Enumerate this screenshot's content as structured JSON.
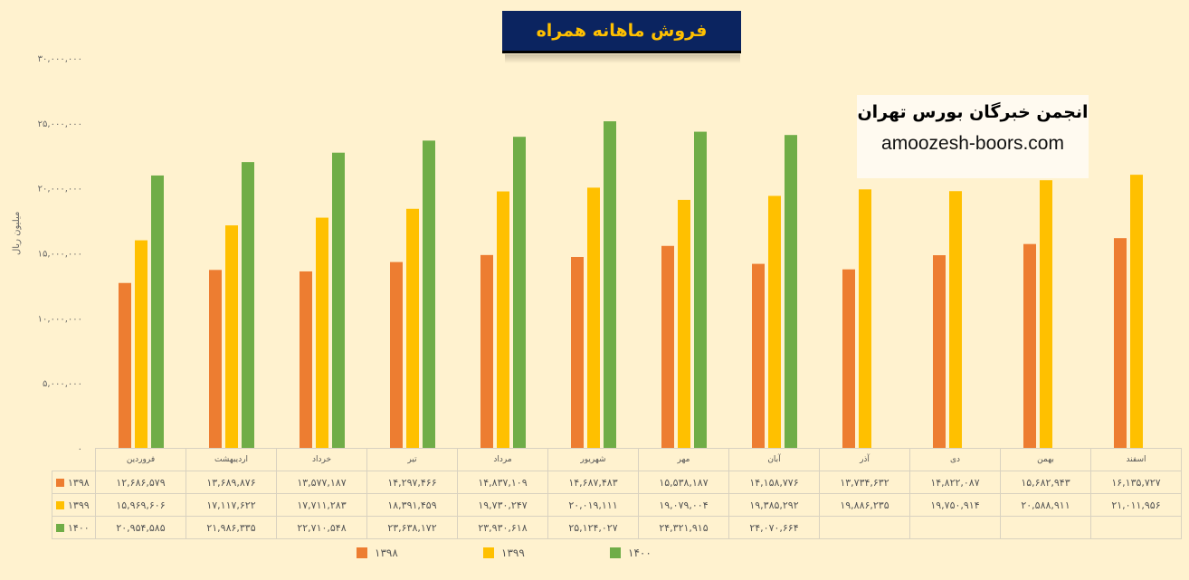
{
  "chart_data": {
    "type": "bar",
    "title": "فروش ماهانه همراه",
    "ylabel": "میلیون ریال",
    "xlabel": "",
    "ylim": [
      0,
      30000000
    ],
    "yticks": [
      0,
      5000000,
      10000000,
      15000000,
      20000000,
      25000000,
      30000000
    ],
    "ytick_labels": [
      "۰",
      "۵,۰۰۰,۰۰۰",
      "۱۰,۰۰۰,۰۰۰",
      "۱۵,۰۰۰,۰۰۰",
      "۲۰,۰۰۰,۰۰۰",
      "۲۵,۰۰۰,۰۰۰",
      "۳۰,۰۰۰,۰۰۰"
    ],
    "categories": [
      "فروردین",
      "اردیبهشت",
      "خرداد",
      "تیر",
      "مرداد",
      "شهریور",
      "مهر",
      "آبان",
      "آذر",
      "دی",
      "بهمن",
      "اسفند"
    ],
    "series": [
      {
        "name": "۱۳۹۸",
        "color": "#ed7d31",
        "values": [
          12686579,
          13689876,
          13577187,
          14297466,
          14837109,
          14687483,
          15538187,
          14158776,
          13734632,
          14822087,
          15682943,
          16135727
        ]
      },
      {
        "name": "۱۳۹۹",
        "color": "#ffc000",
        "values": [
          15969606,
          17117622,
          17711283,
          18391459,
          19730247,
          20019111,
          19079004,
          19385292,
          19886235,
          19750914,
          20588911,
          21011956
        ]
      },
      {
        "name": "۱۴۰۰",
        "color": "#70ad47",
        "values": [
          20954585,
          21986335,
          22710548,
          23638172,
          23930618,
          25124027,
          24321915,
          24070664,
          null,
          null,
          null,
          null
        ]
      }
    ],
    "data_table": true,
    "legend": "bottom",
    "grid": false
  },
  "watermark": {
    "line1": "انجمن خبرگان بورس تهران",
    "line2": "amoozesh-boors.com"
  }
}
